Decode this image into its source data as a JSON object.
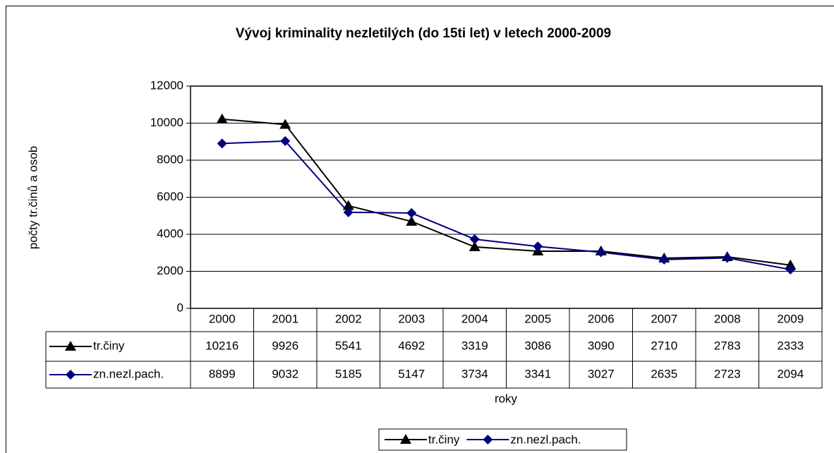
{
  "chart_data": {
    "type": "line",
    "title": "Vývoj kriminality nezletilých (do 15ti let) v letech 2000-2009",
    "y_label": "počty tr.činů a osob",
    "x_label": "roky",
    "categories": [
      "2000",
      "2001",
      "2002",
      "2003",
      "2004",
      "2005",
      "2006",
      "2007",
      "2008",
      "2009"
    ],
    "series": [
      {
        "name": "tr.činy",
        "color": "#000000",
        "marker": "triangle",
        "values": [
          10216,
          9926,
          5541,
          4692,
          3319,
          3086,
          3090,
          2710,
          2783,
          2333
        ]
      },
      {
        "name": "zn.nezl.pach.",
        "color": "#000080",
        "marker": "diamond",
        "values": [
          8899,
          9032,
          5185,
          5147,
          3734,
          3341,
          3027,
          2635,
          2723,
          2094
        ]
      }
    ],
    "ylim": [
      0,
      12000
    ],
    "yticks": [
      0,
      2000,
      4000,
      6000,
      8000,
      10000,
      12000
    ],
    "grid": true,
    "legend": "bottom"
  }
}
